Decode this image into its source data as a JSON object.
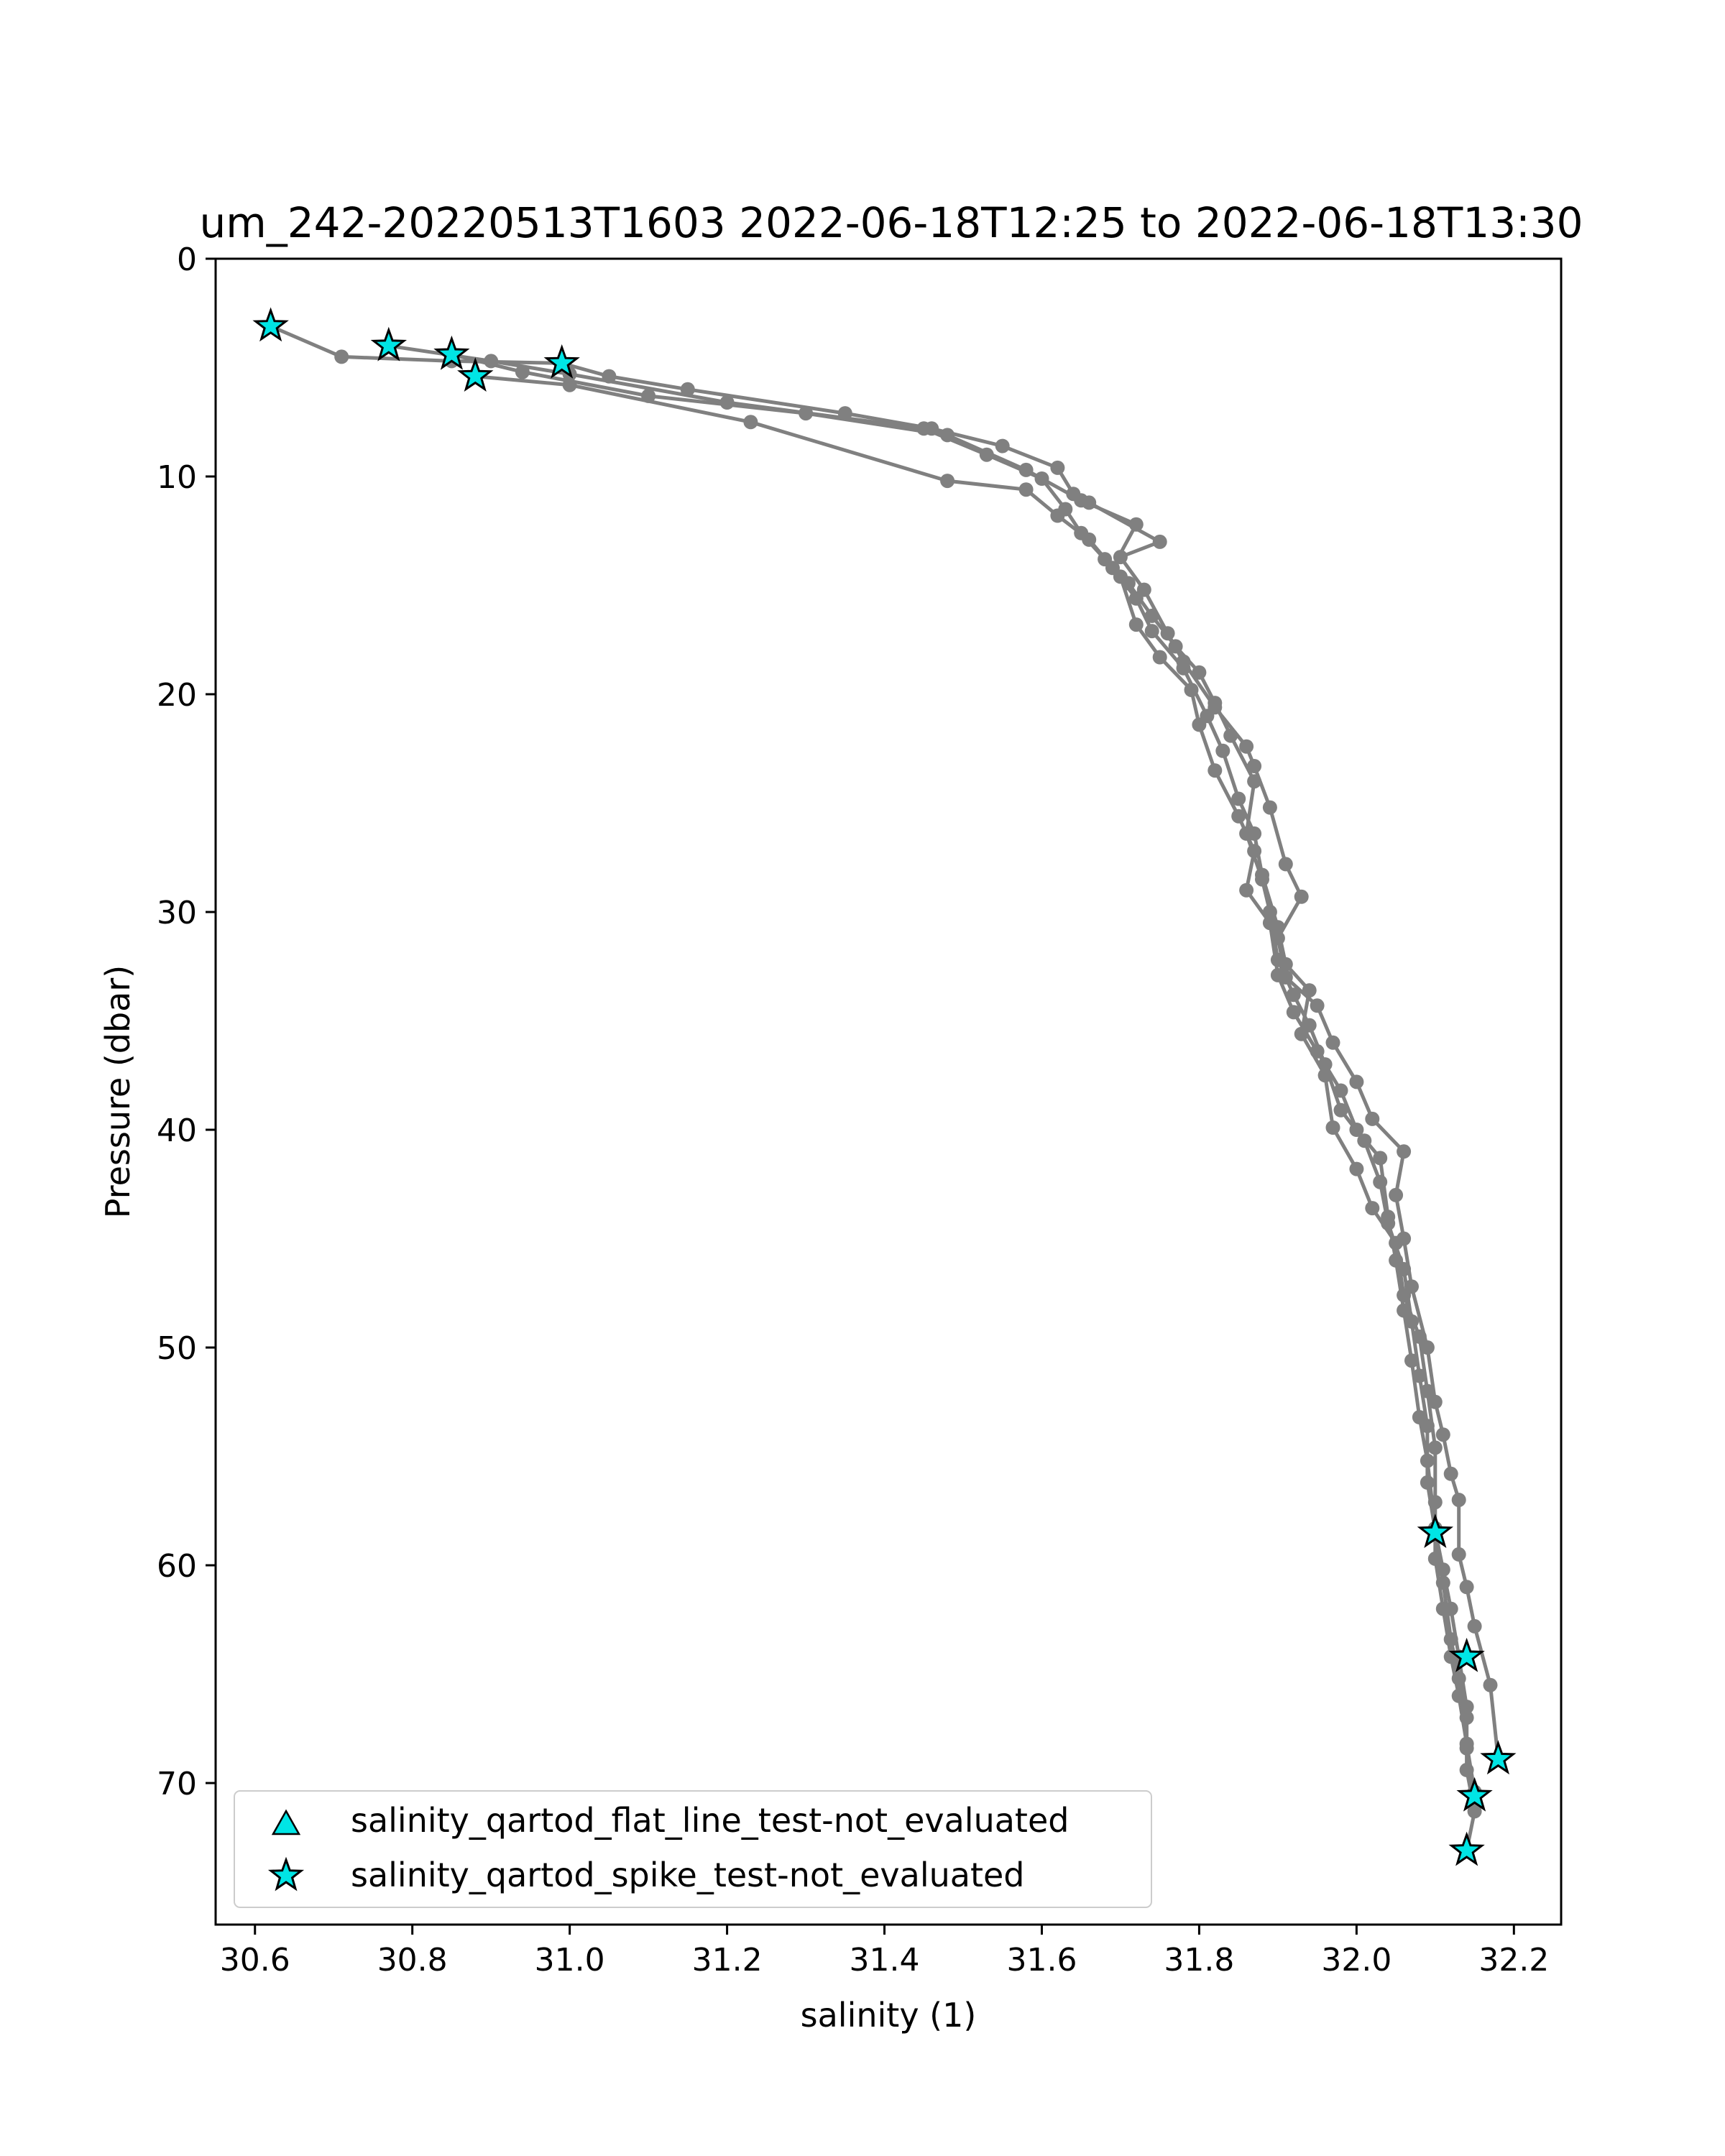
{
  "chart_data": {
    "type": "line",
    "title": "um_242-20220513T1603 2022-06-18T12:25 to 2022-06-18T13:30",
    "xlabel": "salinity (1)",
    "ylabel": "Pressure (dbar)",
    "xlim": [
      30.55,
      32.26
    ],
    "ylim": [
      76.5,
      0
    ],
    "y_inverted": true,
    "grid": false,
    "xticks": [
      "30.6",
      "30.8",
      "31.0",
      "31.2",
      "31.4",
      "31.6",
      "31.8",
      "32.0",
      "32.2"
    ],
    "yticks": [
      "0",
      "10",
      "20",
      "30",
      "40",
      "50",
      "60",
      "70"
    ],
    "line_color": "#808080",
    "marker_color": "#00e5e5",
    "legend_position": "lower-left",
    "legend": [
      {
        "label": "salinity_qartod_flat_line_test-not_evaluated",
        "marker": "triangle"
      },
      {
        "label": "salinity_qartod_spike_test-not_evaluated",
        "marker": "star"
      }
    ],
    "series": [
      {
        "name": "",
        "points": [
          [
            30.62,
            3.1
          ],
          [
            30.71,
            4.5
          ],
          [
            30.85,
            4.7
          ],
          [
            30.99,
            4.8
          ],
          [
            31.05,
            5.4
          ],
          [
            31.15,
            6.0
          ],
          [
            31.35,
            7.1
          ],
          [
            31.46,
            7.8
          ],
          [
            31.55,
            8.6
          ],
          [
            31.62,
            9.6
          ],
          [
            31.64,
            10.8
          ],
          [
            31.66,
            11.2
          ],
          [
            31.75,
            13.0
          ],
          [
            31.7,
            13.7
          ],
          [
            31.73,
            15.2
          ],
          [
            31.76,
            17.2
          ],
          [
            31.78,
            18.5
          ],
          [
            31.82,
            20.6
          ],
          [
            31.86,
            22.4
          ],
          [
            31.87,
            23.3
          ],
          [
            31.89,
            25.2
          ],
          [
            31.91,
            27.8
          ],
          [
            31.93,
            29.3
          ],
          [
            31.9,
            31.2
          ],
          [
            31.91,
            33.0
          ],
          [
            31.95,
            34.3
          ],
          [
            31.97,
            36.0
          ],
          [
            32.0,
            37.8
          ],
          [
            32.02,
            39.5
          ],
          [
            32.06,
            41.0
          ],
          [
            32.05,
            43.0
          ],
          [
            32.06,
            45.0
          ],
          [
            32.07,
            47.2
          ],
          [
            32.09,
            50.0
          ],
          [
            32.1,
            52.5
          ],
          [
            32.11,
            54.0
          ],
          [
            32.12,
            55.8
          ],
          [
            32.13,
            57.0
          ],
          [
            32.13,
            59.5
          ],
          [
            32.14,
            61.0
          ],
          [
            32.15,
            62.8
          ],
          [
            32.17,
            65.5
          ],
          [
            32.18,
            68.9
          ]
        ]
      },
      {
        "name": "",
        "points": [
          [
            30.77,
            4.0
          ],
          [
            30.9,
            4.7
          ],
          [
            31.0,
            5.3
          ],
          [
            31.2,
            6.6
          ],
          [
            31.45,
            7.8
          ],
          [
            31.53,
            9.0
          ],
          [
            31.6,
            10.1
          ],
          [
            31.63,
            11.5
          ],
          [
            31.65,
            12.6
          ],
          [
            31.68,
            13.8
          ],
          [
            31.71,
            14.9
          ],
          [
            31.74,
            16.4
          ],
          [
            31.77,
            17.8
          ],
          [
            31.8,
            19.0
          ],
          [
            31.82,
            20.4
          ],
          [
            31.84,
            21.9
          ],
          [
            31.87,
            24.0
          ],
          [
            31.86,
            26.4
          ],
          [
            31.88,
            28.5
          ],
          [
            31.89,
            30.0
          ],
          [
            31.9,
            32.2
          ],
          [
            31.92,
            33.8
          ],
          [
            31.94,
            35.2
          ],
          [
            31.96,
            37.0
          ],
          [
            31.98,
            39.1
          ],
          [
            32.01,
            40.5
          ],
          [
            32.03,
            42.4
          ],
          [
            32.04,
            44.3
          ],
          [
            32.06,
            46.4
          ],
          [
            32.07,
            48.8
          ],
          [
            32.08,
            51.3
          ],
          [
            32.09,
            53.6
          ],
          [
            32.09,
            56.2
          ],
          [
            32.1,
            58.4
          ],
          [
            32.11,
            60.2
          ],
          [
            32.12,
            62.0
          ],
          [
            32.13,
            64.2
          ],
          [
            32.14,
            66.5
          ],
          [
            32.14,
            68.4
          ],
          [
            32.15,
            70.6
          ]
        ]
      },
      {
        "name": "",
        "points": [
          [
            30.85,
            4.4
          ],
          [
            30.94,
            5.2
          ],
          [
            31.1,
            6.3
          ],
          [
            31.3,
            7.1
          ],
          [
            31.48,
            8.1
          ],
          [
            31.58,
            9.7
          ],
          [
            31.65,
            11.1
          ],
          [
            31.72,
            12.2
          ],
          [
            31.69,
            14.2
          ],
          [
            31.72,
            15.6
          ],
          [
            31.74,
            17.1
          ],
          [
            31.78,
            18.8
          ],
          [
            31.81,
            21.0
          ],
          [
            31.83,
            22.6
          ],
          [
            31.85,
            24.8
          ],
          [
            31.87,
            26.4
          ],
          [
            31.88,
            28.3
          ],
          [
            31.9,
            30.7
          ],
          [
            31.91,
            32.4
          ],
          [
            31.94,
            33.6
          ],
          [
            31.93,
            35.6
          ],
          [
            31.96,
            37.5
          ],
          [
            31.97,
            39.9
          ],
          [
            32.0,
            41.8
          ],
          [
            32.02,
            43.6
          ],
          [
            32.05,
            45.2
          ],
          [
            32.06,
            47.6
          ],
          [
            32.08,
            49.5
          ],
          [
            32.09,
            52.0
          ],
          [
            32.1,
            54.6
          ],
          [
            32.1,
            57.1
          ],
          [
            32.1,
            58.6
          ],
          [
            32.11,
            60.8
          ],
          [
            32.12,
            63.4
          ],
          [
            32.13,
            65.2
          ],
          [
            32.14,
            67.0
          ],
          [
            32.14,
            69.4
          ],
          [
            32.15,
            71.3
          ],
          [
            32.14,
            73.1
          ]
        ]
      },
      {
        "name": "",
        "points": [
          [
            30.88,
            5.4
          ],
          [
            31.0,
            5.8
          ],
          [
            31.23,
            7.5
          ],
          [
            31.48,
            10.2
          ],
          [
            31.58,
            10.6
          ],
          [
            31.62,
            11.8
          ],
          [
            31.66,
            12.9
          ],
          [
            31.7,
            14.6
          ],
          [
            31.72,
            16.8
          ],
          [
            31.75,
            18.3
          ],
          [
            31.79,
            19.8
          ],
          [
            31.8,
            21.4
          ],
          [
            31.82,
            23.5
          ],
          [
            31.85,
            25.6
          ],
          [
            31.87,
            27.2
          ],
          [
            31.86,
            29.0
          ],
          [
            31.89,
            30.5
          ],
          [
            31.9,
            32.9
          ],
          [
            31.92,
            34.6
          ],
          [
            31.95,
            36.4
          ],
          [
            31.98,
            38.2
          ],
          [
            32.0,
            40.0
          ],
          [
            32.03,
            41.3
          ],
          [
            32.04,
            44.0
          ],
          [
            32.05,
            46.0
          ],
          [
            32.06,
            48.3
          ],
          [
            32.07,
            50.6
          ],
          [
            32.08,
            53.2
          ],
          [
            32.09,
            55.2
          ],
          [
            32.1,
            58.3
          ],
          [
            32.1,
            59.7
          ],
          [
            32.11,
            62.0
          ],
          [
            32.12,
            64.2
          ],
          [
            32.13,
            66.0
          ],
          [
            32.14,
            68.2
          ],
          [
            32.15,
            70.4
          ]
        ]
      }
    ],
    "markers": [
      {
        "x": 30.62,
        "y": 3.1,
        "marker": "star"
      },
      {
        "x": 30.77,
        "y": 4.0,
        "marker": "star"
      },
      {
        "x": 30.85,
        "y": 4.4,
        "marker": "star"
      },
      {
        "x": 30.88,
        "y": 5.4,
        "marker": "star"
      },
      {
        "x": 30.99,
        "y": 4.8,
        "marker": "star"
      },
      {
        "x": 32.1,
        "y": 58.5,
        "marker": "star"
      },
      {
        "x": 32.14,
        "y": 64.2,
        "marker": "star"
      },
      {
        "x": 32.18,
        "y": 68.9,
        "marker": "star"
      },
      {
        "x": 32.15,
        "y": 70.6,
        "marker": "star"
      },
      {
        "x": 32.14,
        "y": 73.1,
        "marker": "star"
      }
    ]
  }
}
